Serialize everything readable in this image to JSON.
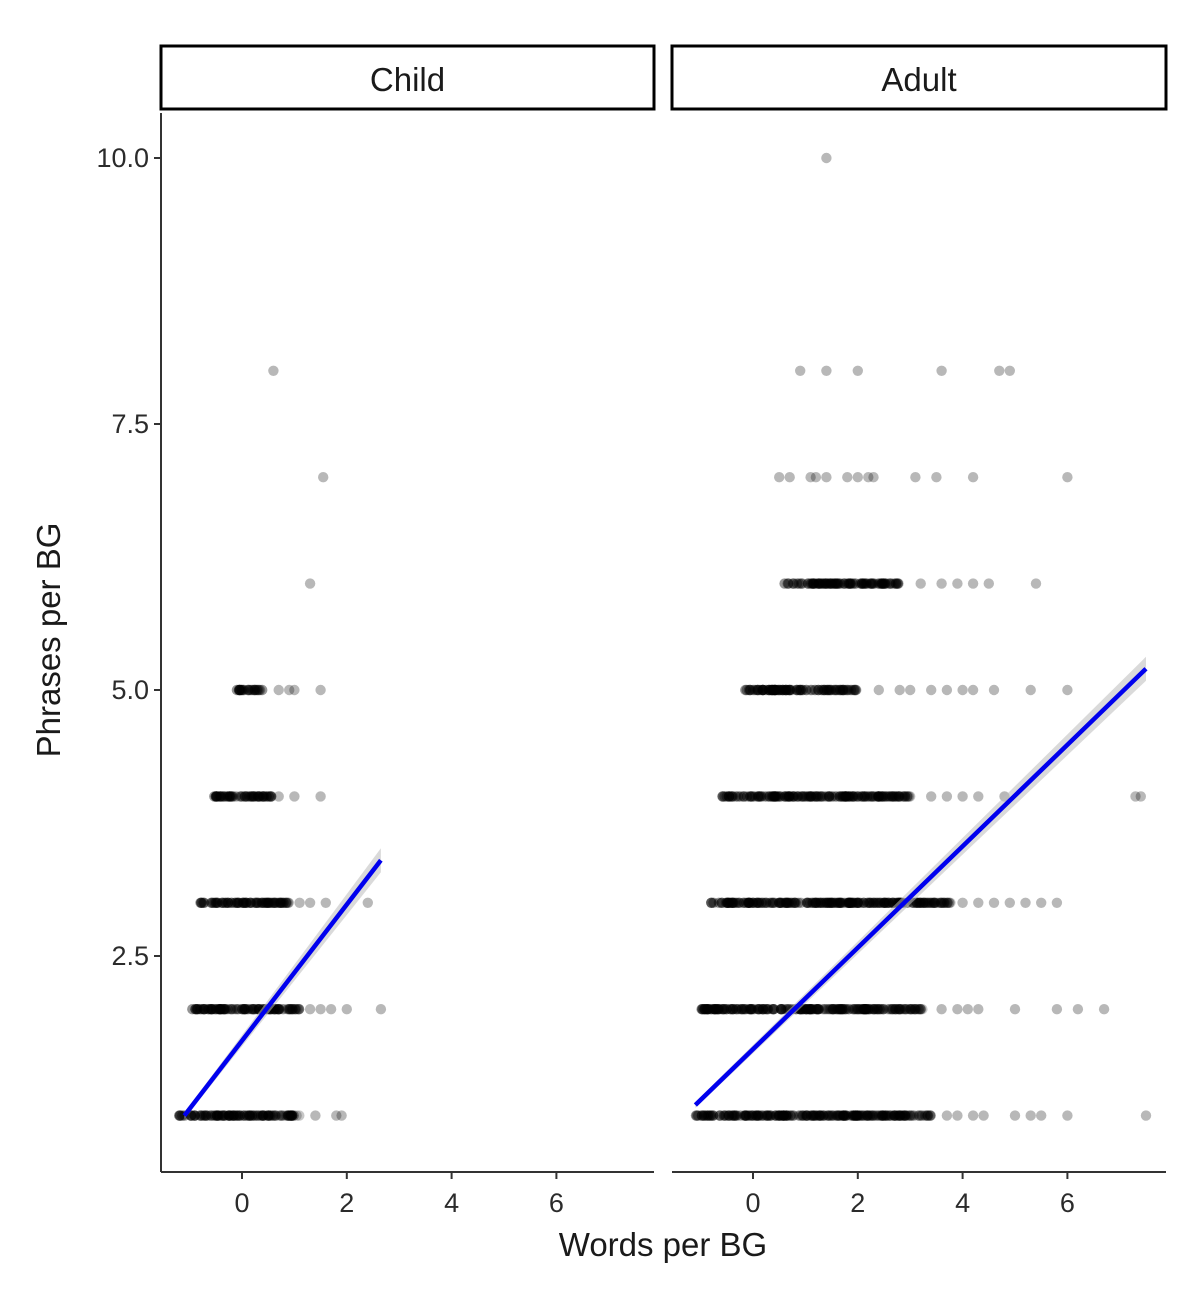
{
  "chart_data": {
    "type": "scatter",
    "xlabel": "Words per BG",
    "ylabel": "Phrases per BG",
    "x_ticks": [
      0,
      2,
      4,
      6
    ],
    "y_ticks": [
      2.5,
      5.0,
      7.5,
      10.0
    ],
    "xlim": [
      -1.6,
      7.8
    ],
    "ylim": [
      0.45,
      10.45
    ],
    "grid": false,
    "legend": "none",
    "colors": {
      "points": "#000000",
      "fit_line": "#0000ee",
      "ribbon": "#bbbbbb",
      "axis": "#333333"
    },
    "panels": [
      {
        "name": "Child",
        "fit": {
          "x": [
            -1.1,
            2.65
          ],
          "y": [
            1.0,
            3.4
          ]
        },
        "rows": [
          {
            "y": 1,
            "dense_x": [
              -1.2,
              1.1
            ],
            "scatter_x": [
              1.4,
              1.8,
              1.9
            ]
          },
          {
            "y": 2,
            "dense_x": [
              -1.0,
              1.1
            ],
            "scatter_x": [
              1.3,
              1.5,
              1.7,
              2.0,
              2.65
            ]
          },
          {
            "y": 3,
            "dense_x": [
              -0.8,
              0.9
            ],
            "scatter_x": [
              1.1,
              1.3,
              1.6,
              2.4
            ]
          },
          {
            "y": 4,
            "dense_x": [
              -0.6,
              0.6
            ],
            "scatter_x": [
              0.7,
              1.0,
              1.5
            ]
          },
          {
            "y": 5,
            "dense_x": [
              -0.1,
              0.4
            ],
            "scatter_x": [
              0.7,
              0.9,
              1.0,
              1.5
            ]
          },
          {
            "y": 6,
            "dense_x": [],
            "scatter_x": [
              1.3
            ]
          },
          {
            "y": 7,
            "dense_x": [],
            "scatter_x": [
              1.55
            ]
          },
          {
            "y": 8,
            "dense_x": [],
            "scatter_x": [
              0.6
            ]
          }
        ]
      },
      {
        "name": "Adult",
        "fit": {
          "x": [
            -1.1,
            7.5
          ],
          "y": [
            1.1,
            5.2
          ]
        },
        "rows": [
          {
            "y": 1,
            "dense_x": [
              -1.2,
              3.4
            ],
            "scatter_x": [
              3.7,
              3.9,
              4.2,
              4.4,
              5.0,
              5.3,
              5.5,
              6.0,
              7.5
            ]
          },
          {
            "y": 2,
            "dense_x": [
              -1.0,
              3.3
            ],
            "scatter_x": [
              3.6,
              3.9,
              4.1,
              4.3,
              5.0,
              5.8,
              6.2,
              6.7
            ]
          },
          {
            "y": 3,
            "dense_x": [
              -0.8,
              3.8
            ],
            "scatter_x": [
              4.0,
              4.3,
              4.6,
              4.9,
              5.2,
              5.5,
              5.8
            ]
          },
          {
            "y": 4,
            "dense_x": [
              -0.6,
              3.0
            ],
            "scatter_x": [
              3.4,
              3.7,
              4.0,
              4.3,
              4.8,
              7.3,
              7.4
            ]
          },
          {
            "y": 5,
            "dense_x": [
              -0.2,
              2.0
            ],
            "scatter_x": [
              2.4,
              2.8,
              3.0,
              3.4,
              3.7,
              4.0,
              4.2,
              4.6,
              5.3,
              6.0
            ]
          },
          {
            "y": 6,
            "dense_x": [
              0.6,
              2.8
            ],
            "scatter_x": [
              3.2,
              3.6,
              3.9,
              4.2,
              4.5,
              5.4
            ]
          },
          {
            "y": 7,
            "dense_x": [],
            "scatter_x": [
              0.5,
              0.7,
              1.1,
              1.2,
              1.4,
              1.8,
              2.0,
              2.2,
              2.3,
              3.1,
              3.5,
              4.2,
              6.0
            ]
          },
          {
            "y": 8,
            "dense_x": [],
            "scatter_x": [
              0.9,
              1.4,
              2.0,
              3.6,
              4.7,
              4.9
            ]
          },
          {
            "y": 10,
            "dense_x": [],
            "scatter_x": [
              1.4
            ]
          }
        ]
      }
    ]
  }
}
